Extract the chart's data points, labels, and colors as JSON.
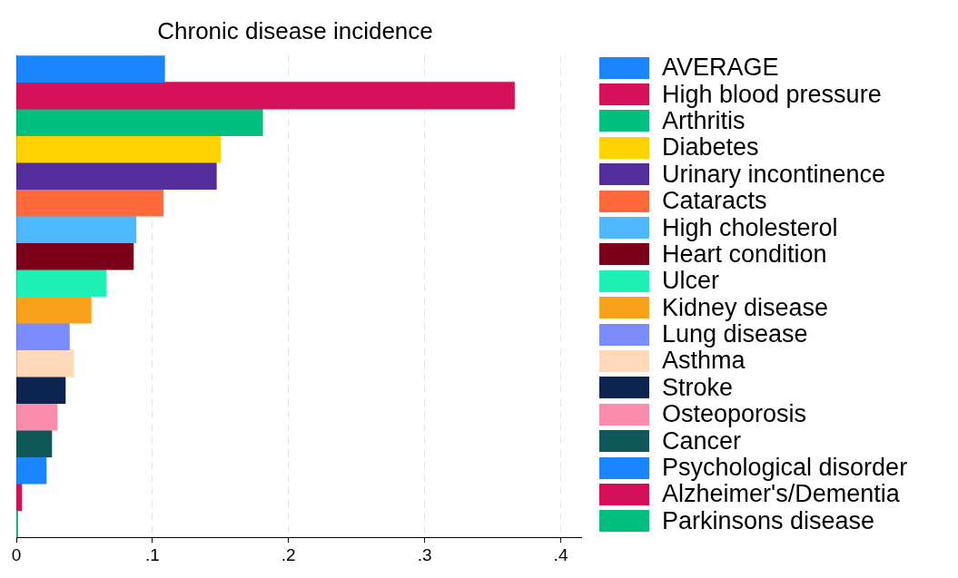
{
  "chart_data": {
    "type": "bar",
    "orientation": "horizontal",
    "title": "Chronic disease incidence",
    "categories": [
      null,
      null,
      null,
      null,
      null,
      null,
      null,
      null,
      null,
      null,
      null,
      null,
      null,
      null,
      null,
      null,
      null,
      null
    ],
    "series": [
      {
        "name": "AVERAGE",
        "color": "#1a85ff",
        "values": [
          0.109,
          null,
          null,
          null,
          null,
          null,
          null,
          null,
          null,
          null,
          null,
          null,
          null,
          null,
          null,
          null,
          null,
          null
        ]
      },
      {
        "name": "High blood pressure",
        "color": "#d41159",
        "values": [
          null,
          0.366,
          null,
          null,
          null,
          null,
          null,
          null,
          null,
          null,
          null,
          null,
          null,
          null,
          null,
          null,
          null,
          null
        ]
      },
      {
        "name": "Arthritis",
        "color": "#00bf7f",
        "values": [
          null,
          null,
          0.181,
          null,
          null,
          null,
          null,
          null,
          null,
          null,
          null,
          null,
          null,
          null,
          null,
          null,
          null,
          null
        ]
      },
      {
        "name": "Diabetes",
        "color": "#ffd200",
        "values": [
          null,
          null,
          null,
          0.15,
          null,
          null,
          null,
          null,
          null,
          null,
          null,
          null,
          null,
          null,
          null,
          null,
          null,
          null
        ]
      },
      {
        "name": "Urinary incontinence",
        "color": "#522d9b",
        "values": [
          null,
          null,
          null,
          null,
          0.147,
          null,
          null,
          null,
          null,
          null,
          null,
          null,
          null,
          null,
          null,
          null,
          null,
          null
        ]
      },
      {
        "name": "Cataracts",
        "color": "#ff6a3d",
        "values": [
          null,
          null,
          null,
          null,
          null,
          0.108,
          null,
          null,
          null,
          null,
          null,
          null,
          null,
          null,
          null,
          null,
          null,
          null
        ]
      },
      {
        "name": "High cholesterol",
        "color": "#4db8ff",
        "values": [
          null,
          null,
          null,
          null,
          null,
          null,
          0.088,
          null,
          null,
          null,
          null,
          null,
          null,
          null,
          null,
          null,
          null,
          null
        ]
      },
      {
        "name": "Heart condition",
        "color": "#7a0019",
        "values": [
          null,
          null,
          null,
          null,
          null,
          null,
          null,
          0.086,
          null,
          null,
          null,
          null,
          null,
          null,
          null,
          null,
          null,
          null
        ]
      },
      {
        "name": "Ulcer",
        "color": "#1ff0b5",
        "values": [
          null,
          null,
          null,
          null,
          null,
          null,
          null,
          null,
          0.066,
          null,
          null,
          null,
          null,
          null,
          null,
          null,
          null,
          null
        ]
      },
      {
        "name": "Kidney disease",
        "color": "#f9a11b",
        "values": [
          null,
          null,
          null,
          null,
          null,
          null,
          null,
          null,
          null,
          0.055,
          null,
          null,
          null,
          null,
          null,
          null,
          null,
          null
        ]
      },
      {
        "name": "Lung disease",
        "color": "#7b8cff",
        "values": [
          null,
          null,
          null,
          null,
          null,
          null,
          null,
          null,
          null,
          null,
          0.039,
          null,
          null,
          null,
          null,
          null,
          null,
          null
        ]
      },
      {
        "name": "Asthma",
        "color": "#ffd9b9",
        "values": [
          null,
          null,
          null,
          null,
          null,
          null,
          null,
          null,
          null,
          null,
          null,
          0.042,
          null,
          null,
          null,
          null,
          null,
          null
        ]
      },
      {
        "name": "Stroke",
        "color": "#0d2350",
        "values": [
          null,
          null,
          null,
          null,
          null,
          null,
          null,
          null,
          null,
          null,
          null,
          null,
          0.036,
          null,
          null,
          null,
          null,
          null
        ]
      },
      {
        "name": "Osteoporosis",
        "color": "#f98dab",
        "values": [
          null,
          null,
          null,
          null,
          null,
          null,
          null,
          null,
          null,
          null,
          null,
          null,
          null,
          0.03,
          null,
          null,
          null,
          null
        ]
      },
      {
        "name": "Cancer",
        "color": "#10575a",
        "values": [
          null,
          null,
          null,
          null,
          null,
          null,
          null,
          null,
          null,
          null,
          null,
          null,
          null,
          null,
          0.026,
          null,
          null,
          null
        ]
      },
      {
        "name": "Psychological disorder",
        "color": "#1a85fe",
        "values": [
          null,
          null,
          null,
          null,
          null,
          null,
          null,
          null,
          null,
          null,
          null,
          null,
          null,
          null,
          null,
          0.022,
          null,
          null
        ]
      },
      {
        "name": "Alzheimer's/Dementia",
        "color": "#d41158",
        "values": [
          null,
          null,
          null,
          null,
          null,
          null,
          null,
          null,
          null,
          null,
          null,
          null,
          null,
          null,
          null,
          null,
          0.004,
          null
        ]
      },
      {
        "name": "Parkinsons disease",
        "color": "#00bf7e",
        "values": [
          null,
          null,
          null,
          null,
          null,
          null,
          null,
          null,
          null,
          null,
          null,
          null,
          null,
          null,
          null,
          null,
          null,
          0.001
        ]
      }
    ],
    "xlim": [
      0,
      0.415
    ],
    "xticks": [
      0,
      {
        "value": 0.1,
        "label": ".1"
      },
      {
        "value": 0.2,
        "label": ".2"
      },
      {
        "value": 0.3,
        "label": ".3"
      },
      {
        "value": 0.4,
        "label": ".4"
      }
    ],
    "grid": "x",
    "legend": "right",
    "tick_labels": "x"
  }
}
